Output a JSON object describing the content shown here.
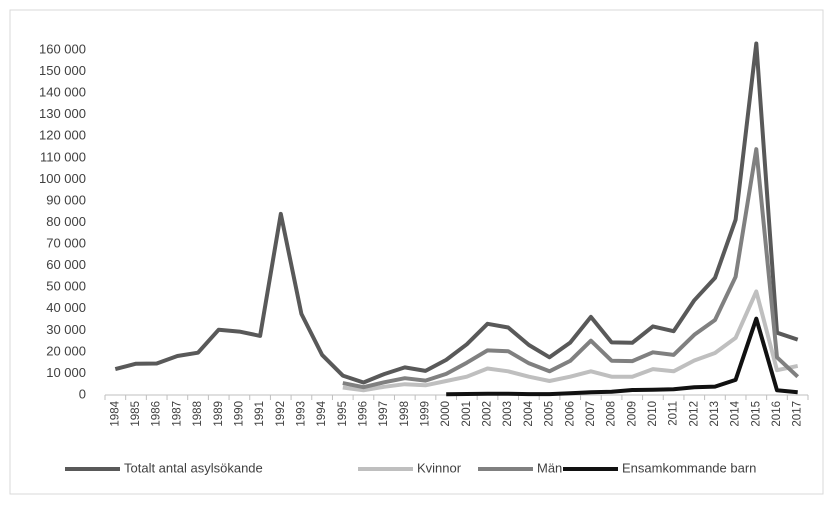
{
  "chart_data": {
    "type": "line",
    "categories": [
      "1984",
      "1985",
      "1986",
      "1987",
      "1988",
      "1989",
      "1990",
      "1991",
      "1992",
      "1993",
      "1994",
      "1995",
      "1996",
      "1997",
      "1998",
      "1999",
      "2000",
      "2001",
      "2002",
      "2003",
      "2004",
      "2005",
      "2006",
      "2007",
      "2008",
      "2009",
      "2010",
      "2011",
      "2012",
      "2013",
      "2014",
      "2015",
      "2016",
      "2017"
    ],
    "series": [
      {
        "name": "Totalt antal asylsökande",
        "color": "#595959",
        "values": [
          12000,
          14500,
          14600,
          18100,
          19600,
          30300,
          29400,
          27400,
          84000,
          37600,
          18600,
          9000,
          5800,
          9700,
          12800,
          11200,
          16300,
          23500,
          33000,
          31300,
          23200,
          17500,
          24300,
          36200,
          24400,
          24200,
          31800,
          29600,
          43900,
          54300,
          81300,
          163000,
          28900,
          25700
        ]
      },
      {
        "name": "Kvinnor",
        "color": "#bfbfbf",
        "values": [
          null,
          null,
          null,
          null,
          null,
          null,
          null,
          null,
          null,
          null,
          null,
          3500,
          2200,
          3800,
          5000,
          4500,
          6500,
          8500,
          12300,
          11000,
          8500,
          6500,
          8500,
          11000,
          8500,
          8500,
          12000,
          11000,
          16000,
          19500,
          26500,
          48000,
          11500,
          13500
        ]
      },
      {
        "name": "Män",
        "color": "#808080",
        "values": [
          null,
          null,
          null,
          null,
          null,
          null,
          null,
          null,
          null,
          null,
          null,
          5500,
          3600,
          5900,
          7800,
          6700,
          9800,
          15000,
          20700,
          20300,
          14700,
          11000,
          15800,
          25200,
          15900,
          15700,
          19800,
          18600,
          27900,
          34800,
          54800,
          114000,
          17500,
          8500
        ]
      },
      {
        "name": "Ensamkommande barn",
        "color": "#111111",
        "values": [
          null,
          null,
          null,
          null,
          null,
          null,
          null,
          null,
          null,
          null,
          null,
          null,
          null,
          null,
          null,
          null,
          350,
          450,
          550,
          600,
          400,
          400,
          800,
          1300,
          1500,
          2300,
          2400,
          2700,
          3600,
          3900,
          7000,
          35400,
          2200,
          1300
        ]
      }
    ],
    "ylim": [
      0,
      160000
    ],
    "yticks": [
      0,
      {
        "value": 10000,
        "label": "10 000"
      },
      {
        "value": 20000,
        "label": "20 000"
      },
      {
        "value": 30000,
        "label": "30 000"
      },
      {
        "value": 40000,
        "label": "40 000"
      },
      {
        "value": 50000,
        "label": "50 000"
      },
      {
        "value": 60000,
        "label": "60 000"
      },
      {
        "value": 70000,
        "label": "70 000"
      },
      {
        "value": 80000,
        "label": "80 000"
      },
      {
        "value": 90000,
        "label": "90 000"
      },
      {
        "value": 100000,
        "label": "100 000"
      },
      {
        "value": 110000,
        "label": "110 000"
      },
      {
        "value": 120000,
        "label": "120 000"
      },
      {
        "value": 130000,
        "label": "130 000"
      },
      {
        "value": 140000,
        "label": "140 000"
      },
      {
        "value": 150000,
        "label": "150 000"
      },
      {
        "value": 160000,
        "label": "160 000"
      }
    ],
    "grid": false,
    "legend": "bottom"
  }
}
